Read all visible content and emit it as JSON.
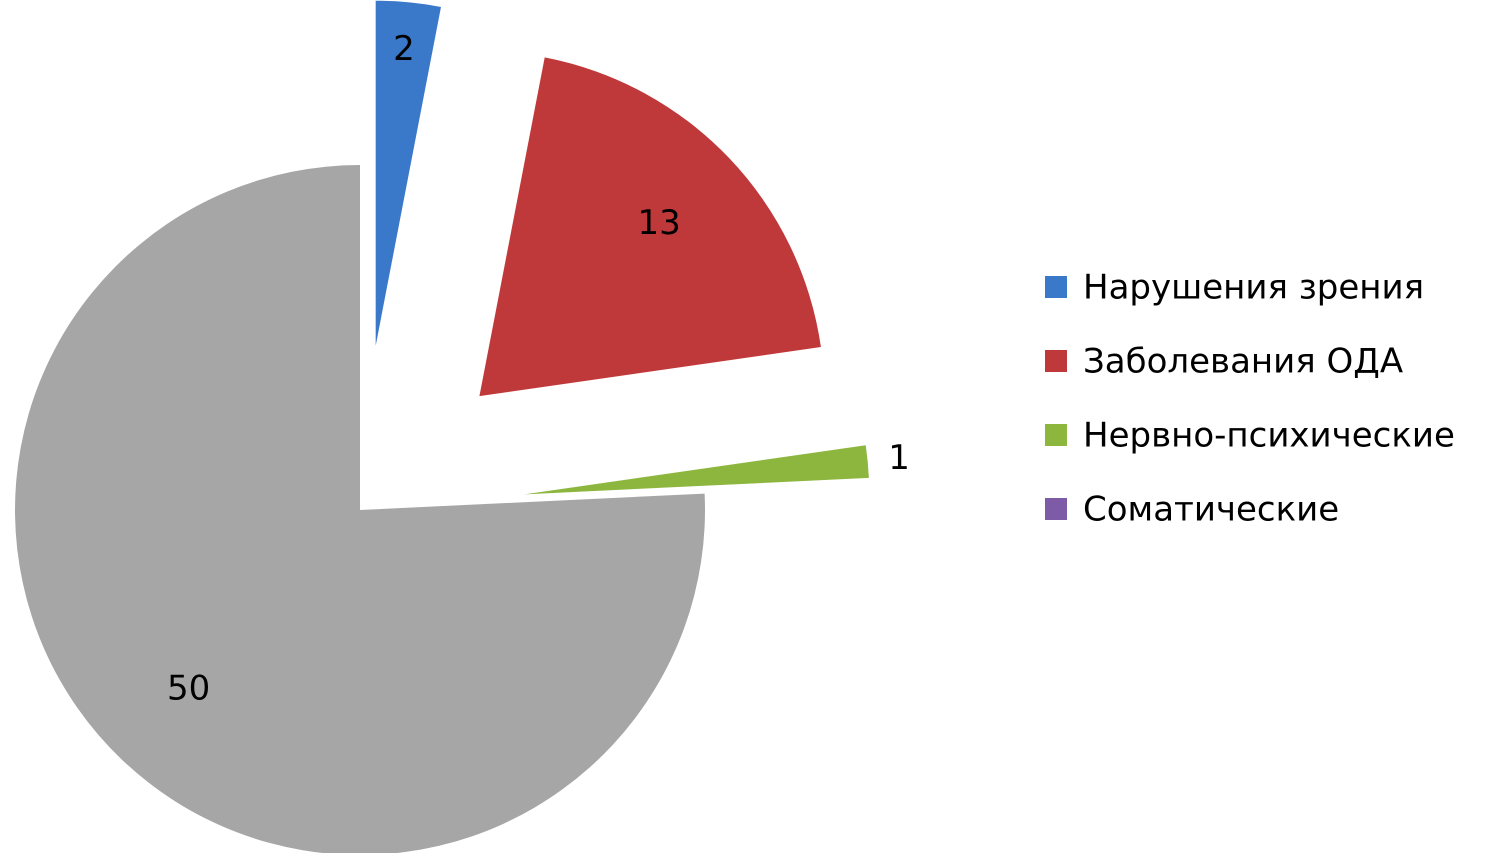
{
  "chart_data": {
    "type": "pie",
    "categories": [
      "Нарушения зрения",
      "Заболевания ОДА",
      "Нервно-психические",
      "Соматические",
      null
    ],
    "values": [
      2,
      13,
      1,
      0,
      50
    ],
    "colors": [
      "#3a78c9",
      "#c0393a",
      "#8db63e",
      "#7d5ba6",
      "#a6a6a6"
    ],
    "legend": "right"
  }
}
